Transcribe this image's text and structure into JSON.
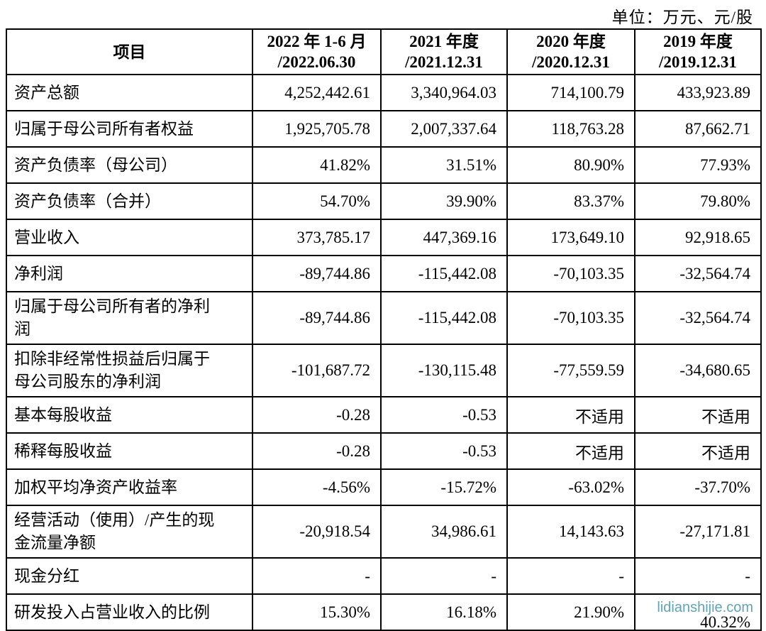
{
  "unit_label": "单位：万元、元/股",
  "watermark": {
    "text": "lidianshijie.com",
    "row_index": 13,
    "col_index": 3
  },
  "table": {
    "columns": [
      {
        "line1": "项目",
        "line2": ""
      },
      {
        "line1": "2022 年 1-6 月",
        "line2": "/2022.06.30"
      },
      {
        "line1": "2021 年度",
        "line2": "/2021.12.31"
      },
      {
        "line1": "2020 年度",
        "line2": "/2020.12.31"
      },
      {
        "line1": "2019 年度",
        "line2": "/2019.12.31"
      }
    ],
    "rows": [
      {
        "label": "资产总额",
        "values": [
          "4,252,442.61",
          "3,340,964.03",
          "714,100.79",
          "433,923.89"
        ]
      },
      {
        "label": "归属于母公司所有者权益",
        "values": [
          "1,925,705.78",
          "2,007,337.64",
          "118,763.28",
          "87,662.71"
        ]
      },
      {
        "label": "资产负债率（母公司）",
        "values": [
          "41.82%",
          "31.51%",
          "80.90%",
          "77.93%"
        ]
      },
      {
        "label": "资产负债率（合并）",
        "values": [
          "54.70%",
          "39.90%",
          "83.37%",
          "79.80%"
        ]
      },
      {
        "label": "营业收入",
        "values": [
          "373,785.17",
          "447,369.16",
          "173,649.10",
          "92,918.65"
        ]
      },
      {
        "label": "净利润",
        "values": [
          "-89,744.86",
          "-115,442.08",
          "-70,103.35",
          "-32,564.74"
        ]
      },
      {
        "label": "归属于母公司所有者的净利\n润",
        "values": [
          "-89,744.86",
          "-115,442.08",
          "-70,103.35",
          "-32,564.74"
        ]
      },
      {
        "label": "扣除非经常性损益后归属于\n母公司股东的净利润",
        "values": [
          "-101,687.72",
          "-130,115.48",
          "-77,559.59",
          "-34,680.65"
        ]
      },
      {
        "label": "基本每股收益",
        "values": [
          "-0.28",
          "-0.53",
          "不适用",
          "不适用"
        ]
      },
      {
        "label": "稀释每股收益",
        "values": [
          "-0.28",
          "-0.53",
          "不适用",
          "不适用"
        ]
      },
      {
        "label": "加权平均净资产收益率",
        "values": [
          "-4.56%",
          "-15.72%",
          "-63.02%",
          "-37.70%"
        ]
      },
      {
        "label": "经营活动（使用）/产生的现\n金流量净额",
        "values": [
          "-20,918.54",
          "34,986.61",
          "14,143.63",
          "-27,171.81"
        ]
      },
      {
        "label": "现金分红",
        "values": [
          "-",
          "-",
          "-",
          "-"
        ]
      },
      {
        "label": "研发投入占营业收入的比例",
        "values": [
          "15.30%",
          "16.18%",
          "21.90%",
          "40.32%"
        ]
      }
    ]
  }
}
